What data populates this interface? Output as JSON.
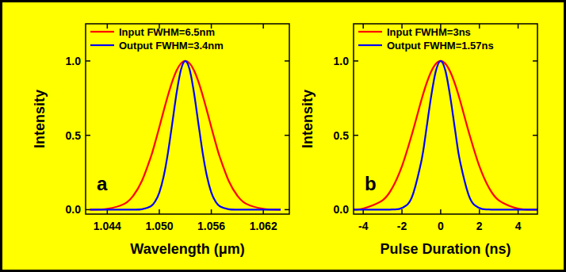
{
  "chart_data": [
    {
      "type": "line",
      "panel_label": "a",
      "x_label": "Wavelength (μm)",
      "y_label": "Intensity",
      "x": [
        1.042,
        1.044,
        1.046,
        1.047,
        1.048,
        1.049,
        1.0495,
        1.05,
        1.0505,
        1.051,
        1.0515,
        1.052,
        1.0525,
        1.053,
        1.0535,
        1.054,
        1.0545,
        1.055,
        1.0555,
        1.056,
        1.0565,
        1.057,
        1.058,
        1.059,
        1.06,
        1.062,
        1.064
      ],
      "series": [
        {
          "name": "Input FWHM=6.5nm",
          "color": "#ff0000",
          "values": [
            0,
            0.005,
            0.04,
            0.094,
            0.194,
            0.35,
            0.448,
            0.554,
            0.664,
            0.769,
            0.863,
            0.937,
            0.984,
            1,
            0.984,
            0.937,
            0.863,
            0.769,
            0.664,
            0.554,
            0.448,
            0.35,
            0.194,
            0.094,
            0.04,
            0.005,
            0
          ]
        },
        {
          "name": "Output FWHM=3.4nm",
          "color": "#0000ff",
          "values": [
            0,
            0,
            0,
            0,
            0.003,
            0.022,
            0.053,
            0.115,
            0.223,
            0.383,
            0.583,
            0.787,
            0.942,
            1,
            0.942,
            0.787,
            0.583,
            0.383,
            0.223,
            0.115,
            0.053,
            0.022,
            0.003,
            0,
            0,
            0,
            0
          ]
        }
      ],
      "xlim": [
        1.0415,
        1.065
      ],
      "ylim": [
        -0.03,
        1.25
      ],
      "xticks": [
        1.044,
        {
          "value": 1.05,
          "label": "1.050"
        },
        1.056,
        1.062
      ],
      "yticks": [
        {
          "value": 0,
          "label": "0.0"
        },
        0.5,
        {
          "value": 1,
          "label": "1.0"
        }
      ],
      "legend": "upper left"
    },
    {
      "type": "line",
      "panel_label": "b",
      "x_label": "Pulse Duration (ns)",
      "y_label": "Intensity",
      "x": [
        -4.5,
        -4,
        -3,
        -2.5,
        -2,
        -1.5,
        -1,
        -0.75,
        -0.5,
        -0.25,
        0,
        0.25,
        0.5,
        0.75,
        1,
        1.5,
        2,
        2.5,
        3,
        4,
        5
      ],
      "series": [
        {
          "name": "Input FWHM=3ns",
          "color": "#ff0000",
          "values": [
            0.002,
            0.007,
            0.063,
            0.146,
            0.292,
            0.5,
            0.735,
            0.841,
            0.926,
            0.981,
            1,
            0.981,
            0.926,
            0.841,
            0.735,
            0.5,
            0.292,
            0.146,
            0.063,
            0.007,
            0
          ]
        },
        {
          "name": "Output FWHM=1.57ns",
          "color": "#0000ff",
          "values": [
            0,
            0,
            0,
            0.001,
            0.011,
            0.08,
            0.325,
            0.531,
            0.755,
            0.932,
            1,
            0.932,
            0.755,
            0.531,
            0.325,
            0.08,
            0.011,
            0.001,
            0,
            0,
            0
          ]
        }
      ],
      "xlim": [
        -4.5,
        5
      ],
      "ylim": [
        -0.03,
        1.25
      ],
      "xticks": [
        -4,
        -2,
        0,
        2,
        4
      ],
      "yticks": [
        {
          "value": 0,
          "label": "0.0"
        },
        0.5,
        {
          "value": 1,
          "label": "1.0"
        }
      ],
      "legend": "upper left"
    }
  ]
}
